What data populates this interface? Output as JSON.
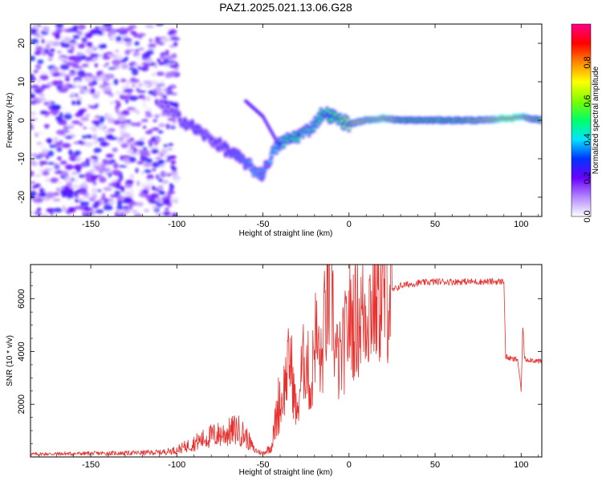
{
  "chart_data": [
    {
      "type": "heatmap",
      "title": "PAZ1.2025.021.13.06.G28",
      "xlabel": "Height of straight line (km)",
      "ylabel": "Frequency (Hz)",
      "xlim": [
        -185,
        112
      ],
      "ylim": [
        -25,
        25
      ],
      "xticks": [
        "-150",
        "-100",
        "-50",
        "0",
        "50",
        "100"
      ],
      "yticks": [
        "20",
        "10",
        "0",
        "-10",
        "-20"
      ],
      "colorbar": {
        "label": "Normalized spectral amplitude",
        "range": [
          0,
          1
        ],
        "ticks": [
          "0.0",
          "0.2",
          "0.4",
          "0.6",
          "0.8"
        ],
        "colors": [
          "#ffffff",
          "#b388ff",
          "#6a00ff",
          "#0033ff",
          "#00e5ff",
          "#00ff66",
          "#7fff00",
          "#ffff00",
          "#ff8800",
          "#ff0000",
          "#ff0088"
        ]
      },
      "frequency_trace": {
        "x": [
          -110,
          -100,
          -90,
          -80,
          -70,
          -60,
          -55,
          -50,
          -45,
          -40,
          -35,
          -30,
          -25,
          -20,
          -15,
          -10,
          -5,
          0,
          10,
          20,
          30,
          40,
          50,
          60,
          70,
          80,
          90,
          95,
          100,
          105,
          112
        ],
        "y": [
          4,
          1,
          -2,
          -5,
          -8,
          -11,
          -13,
          -14,
          -9,
          -6,
          -5,
          -4,
          -3,
          -1,
          2,
          1,
          0,
          -1,
          0,
          0.5,
          0,
          0,
          0,
          0,
          0,
          0,
          0.5,
          0.5,
          1,
          0.5,
          0
        ],
        "peak_amplitude": [
          0.2,
          0.25,
          0.3,
          0.25,
          0.3,
          0.35,
          0.4,
          0.35,
          0.4,
          0.45,
          0.5,
          0.5,
          0.45,
          0.45,
          0.5,
          0.55,
          0.6,
          0.65,
          0.75,
          0.85,
          0.6,
          0.6,
          0.6,
          0.6,
          0.65,
          0.7,
          0.95,
          0.95,
          0.9,
          0.7,
          0.6
        ]
      },
      "secondary_trace": {
        "x": [
          -60,
          -55,
          -50,
          -45,
          -40
        ],
        "y": [
          5,
          3,
          1,
          -3,
          -7
        ]
      }
    },
    {
      "type": "line",
      "title": "",
      "xlabel": "Height of straight line (km)",
      "ylabel": "SNR (10 * v/v)",
      "xlim": [
        -185,
        112
      ],
      "ylim": [
        0,
        7300
      ],
      "xticks": [
        "-150",
        "-100",
        "-50",
        "0",
        "50",
        "100"
      ],
      "yticks": [
        "2000",
        "4000",
        "6000"
      ],
      "line_color": "#e8312e",
      "series": [
        {
          "x": [
            -185,
            -170,
            -150,
            -130,
            -110,
            -100,
            -90,
            -80,
            -70,
            -65,
            -60,
            -55,
            -50,
            -45,
            -40,
            -38,
            -36,
            -34,
            -32,
            -30,
            -28,
            -26,
            -24,
            -22,
            -20,
            -18,
            -16,
            -14,
            -12,
            -10,
            -8,
            -6,
            -4,
            -2,
            0,
            5,
            10,
            15,
            20,
            25,
            30,
            40,
            50,
            60,
            70,
            80,
            85,
            89,
            90,
            91,
            95,
            98,
            100,
            101,
            102,
            105,
            112
          ],
          "y": [
            80,
            90,
            100,
            110,
            130,
            200,
            400,
            600,
            700,
            800,
            600,
            200,
            100,
            300,
            1800,
            2500,
            3200,
            3800,
            2400,
            1500,
            3000,
            3700,
            3500,
            2200,
            4800,
            4100,
            3400,
            5200,
            6000,
            6500,
            4000,
            3500,
            3800,
            4500,
            5200,
            5200,
            5600,
            6000,
            6100,
            6300,
            6500,
            6600,
            6650,
            6650,
            6650,
            6650,
            6650,
            6650,
            6700,
            3800,
            3700,
            3700,
            2500,
            5000,
            3700,
            3700,
            3600
          ]
        }
      ]
    }
  ]
}
